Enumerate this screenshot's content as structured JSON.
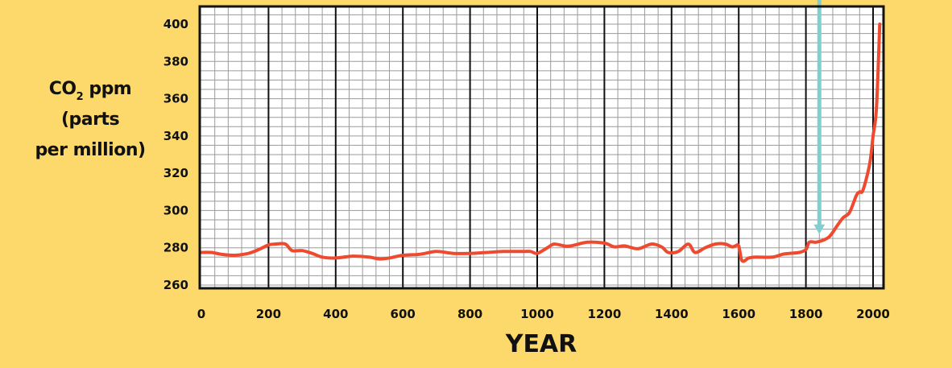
{
  "chart_data": {
    "type": "line",
    "xlabel": "YEAR",
    "ylabel": {
      "pre": "CO",
      "sub": "2",
      "post": " ppm",
      "line2": "(parts",
      "line3": "per million)"
    },
    "xlim": [
      0,
      2025
    ],
    "ylim": [
      258,
      408
    ],
    "x_ticks": [
      0,
      200,
      400,
      600,
      800,
      1000,
      1200,
      1400,
      1600,
      1800,
      2000
    ],
    "y_ticks": [
      260,
      280,
      300,
      320,
      340,
      360,
      380,
      400
    ],
    "grid": true,
    "line_color": "#ee4a2f",
    "arrow_color": "#7fcfd0",
    "arrow_x": 1840,
    "series": [
      {
        "x": [
          0,
          30,
          60,
          100,
          140,
          170,
          200,
          220,
          250,
          270,
          300,
          330,
          360,
          400,
          450,
          500,
          530,
          560,
          600,
          650,
          700,
          750,
          800,
          850,
          900,
          950,
          980,
          1000,
          1030,
          1050,
          1080,
          1100,
          1150,
          1200,
          1230,
          1260,
          1300,
          1340,
          1370,
          1390,
          1420,
          1450,
          1470,
          1500,
          1530,
          1560,
          1580,
          1590,
          1600,
          1610,
          1630,
          1650,
          1700,
          1730,
          1750,
          1780,
          1800,
          1810,
          1830,
          1850,
          1870,
          1890,
          1910,
          1930,
          1950,
          1960,
          1970,
          1990,
          2000,
          2010,
          2020
        ],
        "y": [
          277.5,
          277.5,
          276.5,
          276,
          277,
          279,
          281.5,
          282,
          282,
          278.5,
          278.5,
          277,
          275,
          274.5,
          275.5,
          275,
          274,
          274.5,
          276,
          276.5,
          278,
          277,
          277,
          277.5,
          278,
          278,
          278,
          277,
          280,
          282,
          281,
          281,
          283,
          282.5,
          280.5,
          281,
          279.5,
          282,
          280.5,
          277.5,
          278,
          282,
          277.5,
          280,
          282,
          282,
          280.5,
          281,
          281,
          273,
          274.5,
          275,
          275,
          276.5,
          277,
          277.5,
          279,
          283,
          283,
          284,
          286,
          291,
          296,
          299,
          308,
          310,
          311,
          325,
          340,
          355,
          400
        ]
      }
    ]
  }
}
